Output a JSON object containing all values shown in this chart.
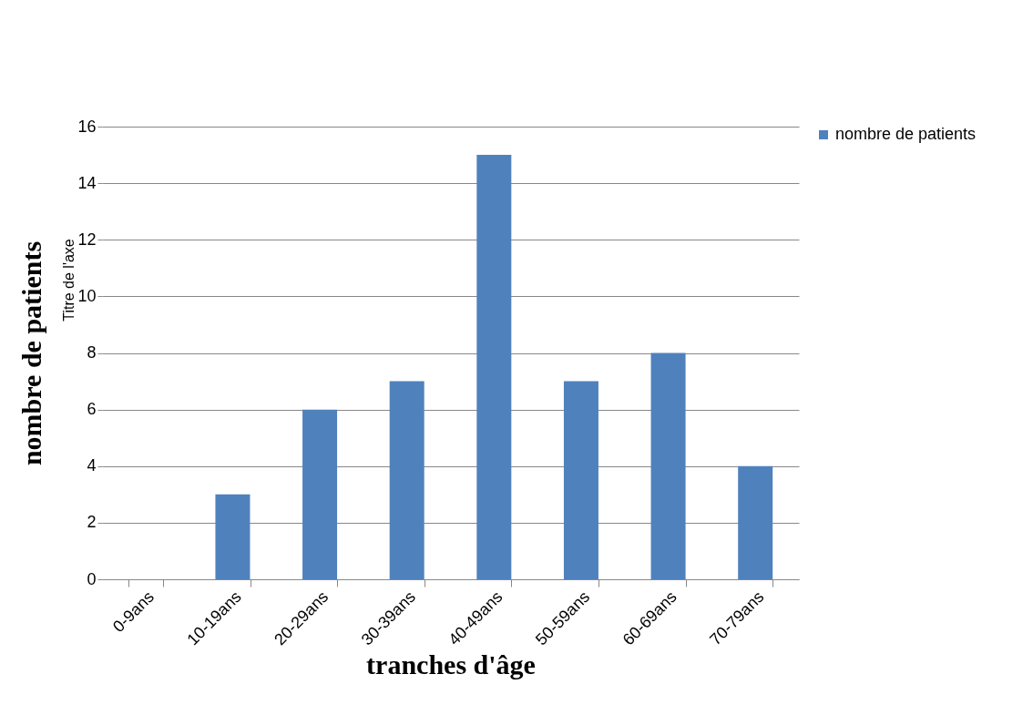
{
  "chart_data": {
    "type": "bar",
    "xlabel": "tranches d'âge",
    "ylabel": "nombre de patients",
    "annotations": [
      "Titre de l'axe"
    ],
    "categories": [
      "0-9ans",
      "10-19ans",
      "20-29ans",
      "30-39ans",
      "40-49ans",
      "50-59ans",
      "60-69ans",
      "70-79ans"
    ],
    "series": [
      {
        "name": "nombre de patients",
        "color": "#4f81bd",
        "values": [
          0,
          3,
          6,
          7,
          15,
          7,
          8,
          4
        ]
      }
    ],
    "ylim": [
      0,
      16
    ],
    "yticks": [
      0,
      2,
      4,
      6,
      8,
      10,
      12,
      14,
      16
    ],
    "grid": "y",
    "legend": "right"
  }
}
